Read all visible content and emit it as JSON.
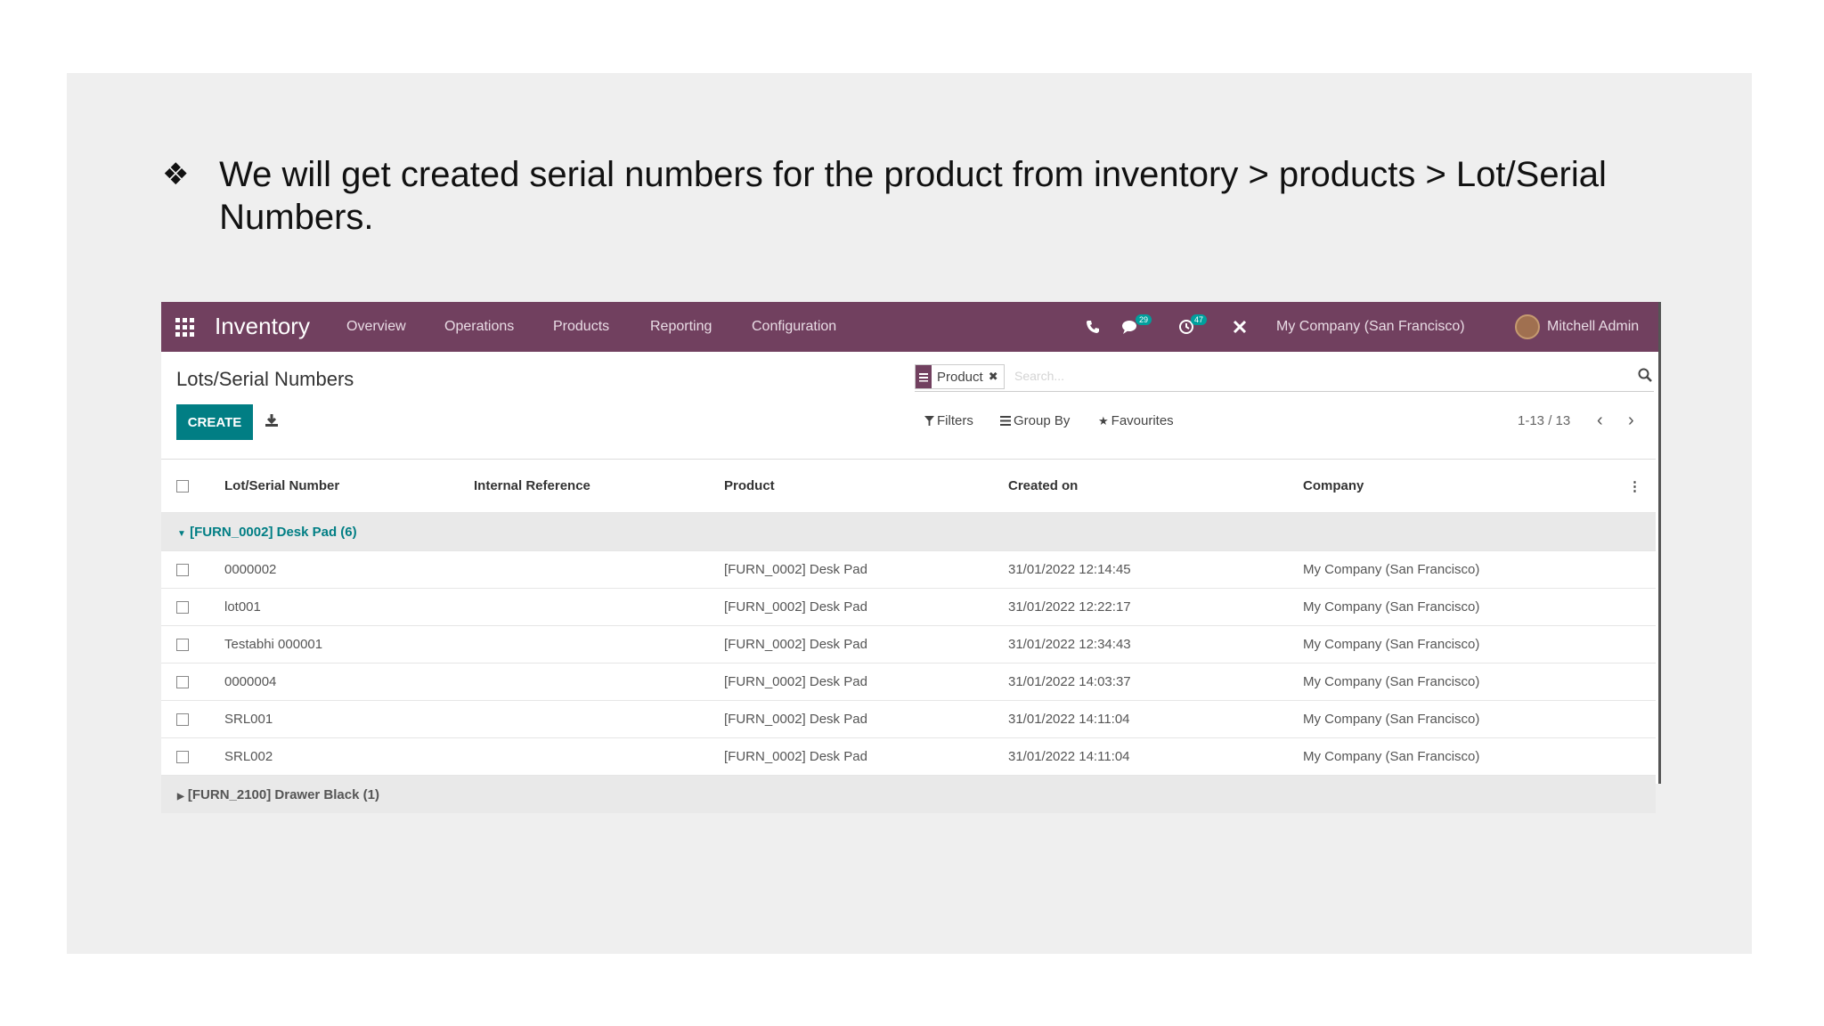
{
  "slide": {
    "bullet_glyph": "❖",
    "bullet_text": "We will get created serial numbers for the product from inventory > products > Lot/Serial Numbers."
  },
  "topbar": {
    "app_title": "Inventory",
    "nav": [
      "Overview",
      "Operations",
      "Products",
      "Reporting",
      "Configuration"
    ],
    "messages_count": "29",
    "activities_count": "47",
    "company": "My Company (San Francisco)",
    "user": "Mitchell Admin"
  },
  "control_panel": {
    "title": "Lots/Serial Numbers",
    "create_label": "CREATE",
    "facet_label": "Product",
    "search_placeholder": "Search...",
    "filters_label": "Filters",
    "groupby_label": "Group By",
    "favourites_label": "Favourites",
    "pager": "1-13 / 13"
  },
  "table": {
    "columns": [
      "Lot/Serial Number",
      "Internal Reference",
      "Product",
      "Created on",
      "Company"
    ],
    "groups": [
      {
        "label": "[FURN_0002] Desk Pad (6)",
        "rows": [
          {
            "lot": "0000002",
            "ref": "",
            "product": "[FURN_0002] Desk Pad",
            "created": "31/01/2022 12:14:45",
            "company": "My Company (San Francisco)"
          },
          {
            "lot": "lot001",
            "ref": "",
            "product": "[FURN_0002] Desk Pad",
            "created": "31/01/2022 12:22:17",
            "company": "My Company (San Francisco)"
          },
          {
            "lot": "Testabhi 000001",
            "ref": "",
            "product": "[FURN_0002] Desk Pad",
            "created": "31/01/2022 12:34:43",
            "company": "My Company (San Francisco)"
          },
          {
            "lot": "0000004",
            "ref": "",
            "product": "[FURN_0002] Desk Pad",
            "created": "31/01/2022 14:03:37",
            "company": "My Company (San Francisco)"
          },
          {
            "lot": "SRL001",
            "ref": "",
            "product": "[FURN_0002] Desk Pad",
            "created": "31/01/2022 14:11:04",
            "company": "My Company (San Francisco)"
          },
          {
            "lot": "SRL002",
            "ref": "",
            "product": "[FURN_0002] Desk Pad",
            "created": "31/01/2022 14:11:04",
            "company": "My Company (San Francisco)"
          }
        ]
      },
      {
        "label": "[FURN_2100] Drawer Black (1)"
      }
    ]
  },
  "colors": {
    "topbar": "#71405f",
    "primary_button": "#017e84",
    "group_row": "#e9e9e9"
  }
}
